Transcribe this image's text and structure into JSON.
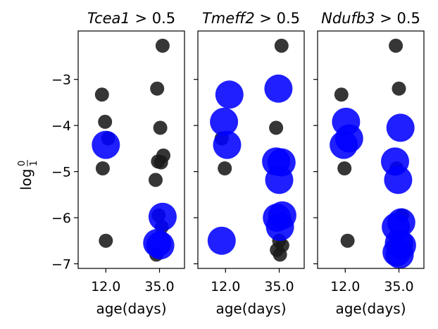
{
  "chart_data": {
    "type": "scatter",
    "ylabel": "log 0/1",
    "ylabel_parts": {
      "base": "log",
      "numerator": "0",
      "denominator": "1"
    },
    "xlabel": "age(days)",
    "yticks": [
      "−3",
      "−4",
      "−5",
      "−6",
      "−7"
    ],
    "ytick_values": [
      -3,
      -4,
      -5,
      -6,
      -7
    ],
    "ylim": [
      -7.1,
      -1.95
    ],
    "x_categories": [
      "12.0",
      "35.0"
    ],
    "colors": {
      "other": "#1a1a1a",
      "selected": "#0000ff"
    },
    "panels": [
      {
        "title_gene": "Tcea1",
        "title_rest": " > 0.5",
        "xlabel": "age(days)",
        "points": [
          {
            "x": "12.0",
            "y": -3.33,
            "selected": false
          },
          {
            "x": "12.0",
            "y": -3.92,
            "selected": false
          },
          {
            "x": "12.0",
            "y": -4.28,
            "selected": false
          },
          {
            "x": "12.0",
            "y": -4.93,
            "selected": false
          },
          {
            "x": "12.0",
            "y": -6.5,
            "selected": false
          },
          {
            "x": "35.0",
            "y": -2.27,
            "selected": false
          },
          {
            "x": "35.0",
            "y": -3.2,
            "selected": false
          },
          {
            "x": "35.0",
            "y": -4.05,
            "selected": false
          },
          {
            "x": "35.0",
            "y": -4.65,
            "selected": false
          },
          {
            "x": "35.0",
            "y": -4.78,
            "selected": false
          },
          {
            "x": "35.0",
            "y": -4.8,
            "selected": false
          },
          {
            "x": "35.0",
            "y": -5.18,
            "selected": false
          },
          {
            "x": "35.0",
            "y": -5.95,
            "selected": false
          },
          {
            "x": "35.0",
            "y": -6.2,
            "selected": false
          },
          {
            "x": "35.0",
            "y": -6.8,
            "selected": false
          },
          {
            "x": "12.0",
            "y": -4.42,
            "selected": true
          },
          {
            "x": "35.0",
            "y": -5.98,
            "selected": true
          },
          {
            "x": "35.0",
            "y": -6.55,
            "selected": true
          },
          {
            "x": "35.0",
            "y": -6.6,
            "selected": true
          }
        ]
      },
      {
        "title_gene": "Tmeff2",
        "title_rest": " > 0.5",
        "xlabel": "age(days)",
        "points": [
          {
            "x": "12.0",
            "y": -4.28,
            "selected": false
          },
          {
            "x": "12.0",
            "y": -4.93,
            "selected": false
          },
          {
            "x": "35.0",
            "y": -2.27,
            "selected": false
          },
          {
            "x": "35.0",
            "y": -4.05,
            "selected": false
          },
          {
            "x": "35.0",
            "y": -6.5,
            "selected": false
          },
          {
            "x": "35.0",
            "y": -6.6,
            "selected": false
          },
          {
            "x": "35.0",
            "y": -6.7,
            "selected": false
          },
          {
            "x": "35.0",
            "y": -6.8,
            "selected": false
          },
          {
            "x": "12.0",
            "y": -3.33,
            "selected": true
          },
          {
            "x": "12.0",
            "y": -3.92,
            "selected": true
          },
          {
            "x": "12.0",
            "y": -4.42,
            "selected": true
          },
          {
            "x": "12.0",
            "y": -6.5,
            "selected": true
          },
          {
            "x": "35.0",
            "y": -3.2,
            "selected": true
          },
          {
            "x": "35.0",
            "y": -4.8,
            "selected": true
          },
          {
            "x": "35.0",
            "y": -4.78,
            "selected": true
          },
          {
            "x": "35.0",
            "y": -5.18,
            "selected": true
          },
          {
            "x": "35.0",
            "y": -5.95,
            "selected": true
          },
          {
            "x": "35.0",
            "y": -6.0,
            "selected": true
          },
          {
            "x": "35.0",
            "y": -6.2,
            "selected": true
          }
        ]
      },
      {
        "title_gene": "Ndufb3",
        "title_rest": " > 0.5",
        "xlabel": "age(days)",
        "points": [
          {
            "x": "12.0",
            "y": -3.33,
            "selected": false
          },
          {
            "x": "12.0",
            "y": -4.93,
            "selected": false
          },
          {
            "x": "12.0",
            "y": -6.5,
            "selected": false
          },
          {
            "x": "35.0",
            "y": -2.27,
            "selected": false
          },
          {
            "x": "35.0",
            "y": -3.2,
            "selected": false
          },
          {
            "x": "35.0",
            "y": -5.95,
            "selected": false
          },
          {
            "x": "35.0",
            "y": -4.93,
            "selected": false
          },
          {
            "x": "12.0",
            "y": -3.92,
            "selected": true
          },
          {
            "x": "12.0",
            "y": -4.28,
            "selected": true
          },
          {
            "x": "12.0",
            "y": -4.42,
            "selected": true
          },
          {
            "x": "35.0",
            "y": -4.05,
            "selected": true
          },
          {
            "x": "35.0",
            "y": -4.78,
            "selected": true
          },
          {
            "x": "35.0",
            "y": -5.18,
            "selected": true
          },
          {
            "x": "35.0",
            "y": -6.1,
            "selected": true
          },
          {
            "x": "35.0",
            "y": -6.2,
            "selected": true
          },
          {
            "x": "35.0",
            "y": -6.55,
            "selected": true
          },
          {
            "x": "35.0",
            "y": -6.6,
            "selected": true
          },
          {
            "x": "35.0",
            "y": -6.75,
            "selected": true
          },
          {
            "x": "35.0",
            "y": -6.8,
            "selected": true
          }
        ]
      }
    ]
  }
}
